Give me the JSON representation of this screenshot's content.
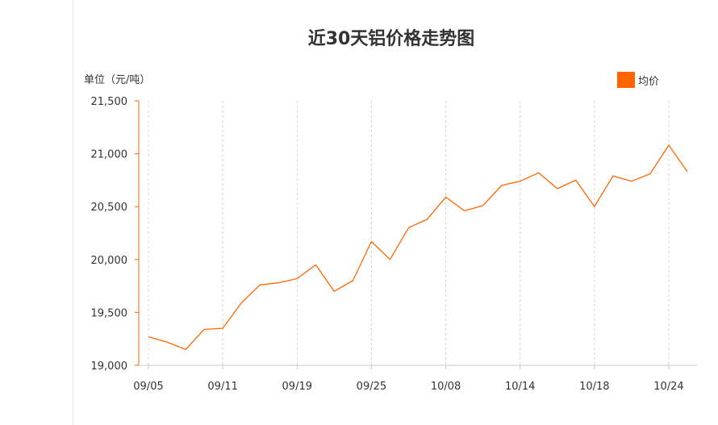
{
  "chart_data": {
    "type": "line",
    "title": "近30天铝价格走势图",
    "ylabel": "单位（元/吨）",
    "ylim": [
      19000,
      21500
    ],
    "yticks": [
      19000,
      19500,
      20000,
      20500,
      21000,
      21500
    ],
    "ytick_labels": [
      "19,000",
      "19,500",
      "20,000",
      "20,500",
      "21,000",
      "21,500"
    ],
    "xtick_labels": [
      "09/05",
      "09/11",
      "09/19",
      "09/25",
      "10/08",
      "10/14",
      "10/18",
      "10/24"
    ],
    "xtick_indices": [
      0,
      4,
      8,
      12,
      16,
      20,
      24,
      28
    ],
    "grid": "vertical-dashed",
    "legend_position": "top-right",
    "series": [
      {
        "name": "均价",
        "color": "#ff6600",
        "values": [
          19270,
          19220,
          19150,
          19340,
          19350,
          19590,
          19760,
          19780,
          19820,
          19950,
          19700,
          19800,
          20170,
          20000,
          20300,
          20380,
          20590,
          20460,
          20510,
          20700,
          20740,
          20820,
          20670,
          20750,
          20500,
          20790,
          20740,
          20810,
          21080,
          20830
        ]
      }
    ]
  }
}
